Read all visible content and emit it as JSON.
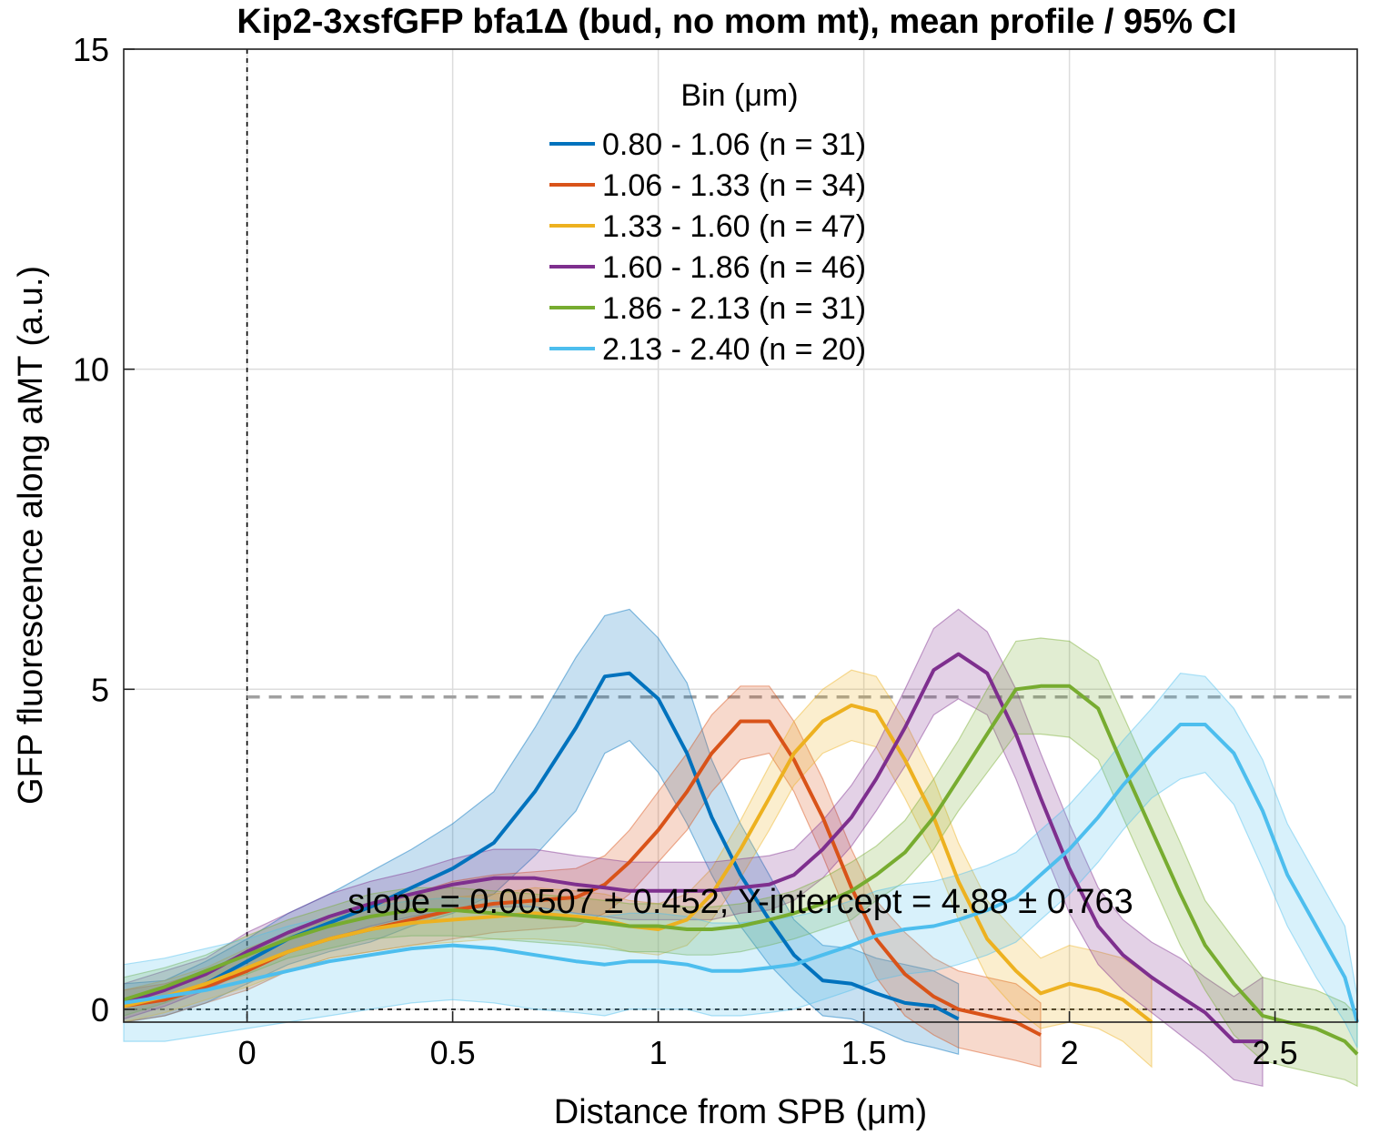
{
  "chart_data": {
    "type": "line",
    "title": "Kip2-3xsfGFP bfa1Δ (bud, no mom mt), mean profile / 95% CI",
    "xlabel": "Distance from SPB (μm)",
    "ylabel": "GFP fluorescence along aMT (a.u.)",
    "xlim": [
      -0.3,
      2.7
    ],
    "ylim": [
      -0.2,
      15
    ],
    "xticks": [
      0,
      0.5,
      1,
      1.5,
      2,
      2.5
    ],
    "xtick_labels": [
      "0",
      "0.5",
      "1",
      "1.5",
      "2",
      "2.5"
    ],
    "yticks": [
      0,
      5,
      10,
      15
    ],
    "ytick_labels": [
      "0",
      "5",
      "10",
      "15"
    ],
    "grid": true,
    "legend": {
      "title": "Bin (μm)",
      "placement": "top-center",
      "entries": [
        "0.80 - 1.06 (n =  31)",
        "1.06 - 1.33 (n =  34)",
        "1.33 - 1.60 (n =  47)",
        "1.60 - 1.86 (n =  46)",
        "1.86 - 2.13 (n =  31)",
        "2.13 - 2.40 (n =  20)"
      ]
    },
    "annotation": "slope = 0.00507 ± 0.452, Y-intercept = 4.88 ± 0.763",
    "reference_lines": {
      "fit_level": 4.88,
      "zero_y": 0,
      "zero_x": 0
    },
    "series": [
      {
        "name": "0.80 - 1.06 (n =  31)",
        "color": "#0072bd",
        "x": [
          -0.3,
          -0.2,
          -0.1,
          0,
          0.1,
          0.2,
          0.3,
          0.4,
          0.5,
          0.6,
          0.7,
          0.8,
          0.87,
          0.93,
          1.0,
          1.07,
          1.13,
          1.2,
          1.27,
          1.33,
          1.4,
          1.47,
          1.53,
          1.6,
          1.67,
          1.73
        ],
        "y": [
          0.1,
          0.15,
          0.4,
          0.75,
          1.1,
          1.35,
          1.6,
          1.9,
          2.2,
          2.6,
          3.4,
          4.4,
          5.2,
          5.25,
          4.85,
          4.0,
          3.0,
          2.1,
          1.4,
          0.85,
          0.45,
          0.4,
          0.25,
          0.1,
          0.05,
          -0.15
        ],
        "lo": [
          -0.2,
          -0.1,
          0.1,
          0.4,
          0.7,
          0.9,
          1.05,
          1.3,
          1.5,
          1.8,
          2.4,
          3.1,
          4.0,
          4.2,
          3.7,
          2.9,
          2.1,
          1.3,
          0.7,
          0.3,
          -0.1,
          -0.15,
          -0.3,
          -0.5,
          -0.6,
          -0.7
        ],
        "hi": [
          0.4,
          0.45,
          0.75,
          1.1,
          1.5,
          1.8,
          2.15,
          2.5,
          2.9,
          3.4,
          4.4,
          5.5,
          6.15,
          6.25,
          5.8,
          5.1,
          3.9,
          2.9,
          2.1,
          1.4,
          1.0,
          0.95,
          0.8,
          0.7,
          0.6,
          0.4
        ]
      },
      {
        "name": "1.06 - 1.33 (n =  34)",
        "color": "#d95319",
        "x": [
          -0.3,
          -0.2,
          -0.1,
          0,
          0.1,
          0.2,
          0.3,
          0.4,
          0.5,
          0.6,
          0.7,
          0.8,
          0.87,
          0.93,
          1.0,
          1.07,
          1.13,
          1.2,
          1.27,
          1.33,
          1.4,
          1.47,
          1.53,
          1.6,
          1.67,
          1.73,
          1.8,
          1.87,
          1.93
        ],
        "y": [
          0.05,
          0.15,
          0.35,
          0.6,
          0.9,
          1.1,
          1.25,
          1.4,
          1.55,
          1.65,
          1.7,
          1.75,
          1.95,
          2.3,
          2.8,
          3.4,
          4.0,
          4.5,
          4.5,
          3.9,
          3.0,
          1.9,
          1.1,
          0.55,
          0.2,
          0.0,
          -0.1,
          -0.2,
          -0.4
        ],
        "lo": [
          -0.2,
          -0.1,
          0.1,
          0.3,
          0.6,
          0.8,
          0.9,
          1.0,
          1.1,
          1.2,
          1.25,
          1.3,
          1.5,
          1.8,
          2.3,
          2.8,
          3.4,
          3.9,
          4.0,
          3.4,
          2.4,
          1.3,
          0.5,
          -0.1,
          -0.4,
          -0.6,
          -0.7,
          -0.8,
          -0.9
        ],
        "hi": [
          0.3,
          0.4,
          0.6,
          0.9,
          1.2,
          1.45,
          1.6,
          1.8,
          2.0,
          2.1,
          2.15,
          2.2,
          2.4,
          2.8,
          3.4,
          4.0,
          4.6,
          5.05,
          5.05,
          4.5,
          3.6,
          2.5,
          1.7,
          1.2,
          0.8,
          0.6,
          0.5,
          0.4,
          0.1
        ]
      },
      {
        "name": "1.33 - 1.60 (n =  47)",
        "color": "#edb120",
        "x": [
          -0.3,
          -0.2,
          -0.1,
          0,
          0.1,
          0.2,
          0.3,
          0.4,
          0.5,
          0.6,
          0.7,
          0.8,
          0.87,
          0.93,
          1.0,
          1.07,
          1.13,
          1.2,
          1.27,
          1.33,
          1.4,
          1.47,
          1.53,
          1.6,
          1.67,
          1.73,
          1.8,
          1.87,
          1.93,
          2.0,
          2.07,
          2.13,
          2.2
        ],
        "y": [
          0.05,
          0.2,
          0.4,
          0.65,
          0.9,
          1.1,
          1.25,
          1.35,
          1.4,
          1.45,
          1.5,
          1.45,
          1.4,
          1.3,
          1.25,
          1.4,
          1.8,
          2.5,
          3.3,
          4.0,
          4.5,
          4.75,
          4.65,
          3.9,
          3.0,
          2.0,
          1.1,
          0.6,
          0.25,
          0.4,
          0.3,
          0.15,
          -0.2
        ],
        "lo": [
          -0.2,
          -0.05,
          0.15,
          0.35,
          0.6,
          0.8,
          0.9,
          1.0,
          1.05,
          1.1,
          1.1,
          1.05,
          1.0,
          0.9,
          0.85,
          1.0,
          1.4,
          2.05,
          2.8,
          3.5,
          4.0,
          4.2,
          4.1,
          3.3,
          2.4,
          1.4,
          0.5,
          0.0,
          -0.3,
          -0.2,
          -0.3,
          -0.5,
          -0.9
        ],
        "hi": [
          0.3,
          0.45,
          0.65,
          0.95,
          1.2,
          1.4,
          1.6,
          1.7,
          1.75,
          1.8,
          1.9,
          1.85,
          1.8,
          1.7,
          1.65,
          1.8,
          2.2,
          2.95,
          3.8,
          4.5,
          5.0,
          5.3,
          5.2,
          4.5,
          3.6,
          2.6,
          1.7,
          1.2,
          0.8,
          1.0,
          0.9,
          0.8,
          0.5
        ]
      },
      {
        "name": "1.60 - 1.86 (n =  46)",
        "color": "#7e2f8e",
        "x": [
          -0.3,
          -0.2,
          -0.1,
          0,
          0.1,
          0.2,
          0.3,
          0.4,
          0.5,
          0.6,
          0.7,
          0.8,
          0.87,
          0.93,
          1.0,
          1.07,
          1.13,
          1.2,
          1.27,
          1.33,
          1.4,
          1.47,
          1.53,
          1.6,
          1.67,
          1.73,
          1.8,
          1.87,
          1.93,
          2.0,
          2.07,
          2.13,
          2.2,
          2.27,
          2.33,
          2.4,
          2.47
        ],
        "y": [
          0.1,
          0.3,
          0.55,
          0.9,
          1.2,
          1.45,
          1.65,
          1.8,
          1.95,
          2.05,
          2.05,
          1.95,
          1.9,
          1.85,
          1.85,
          1.85,
          1.85,
          1.9,
          1.95,
          2.1,
          2.5,
          3.0,
          3.6,
          4.4,
          5.3,
          5.55,
          5.25,
          4.3,
          3.3,
          2.2,
          1.3,
          0.85,
          0.5,
          0.2,
          -0.05,
          -0.5,
          -0.5
        ],
        "lo": [
          -0.15,
          0.05,
          0.3,
          0.6,
          0.9,
          1.1,
          1.3,
          1.45,
          1.55,
          1.6,
          1.6,
          1.5,
          1.45,
          1.4,
          1.4,
          1.4,
          1.4,
          1.5,
          1.55,
          1.7,
          2.05,
          2.55,
          3.1,
          3.8,
          4.6,
          4.85,
          4.6,
          3.6,
          2.6,
          1.5,
          0.7,
          0.3,
          -0.05,
          -0.4,
          -0.7,
          -1.1,
          -1.2
        ],
        "hi": [
          0.4,
          0.6,
          0.8,
          1.2,
          1.5,
          1.8,
          2.0,
          2.15,
          2.35,
          2.5,
          2.5,
          2.4,
          2.35,
          2.3,
          2.3,
          2.3,
          2.3,
          2.35,
          2.4,
          2.5,
          2.95,
          3.5,
          4.1,
          5.0,
          5.95,
          6.25,
          5.9,
          5.0,
          4.0,
          2.9,
          1.9,
          1.4,
          1.05,
          0.8,
          0.5,
          0.2,
          0.5
        ]
      },
      {
        "name": "1.86 - 2.13 (n =  31)",
        "color": "#77ac30",
        "x": [
          -0.3,
          -0.2,
          -0.1,
          0,
          0.1,
          0.2,
          0.3,
          0.4,
          0.5,
          0.6,
          0.7,
          0.8,
          0.87,
          0.93,
          1.0,
          1.07,
          1.13,
          1.2,
          1.27,
          1.33,
          1.4,
          1.47,
          1.53,
          1.6,
          1.67,
          1.73,
          1.8,
          1.87,
          1.93,
          2.0,
          2.07,
          2.13,
          2.2,
          2.27,
          2.33,
          2.4,
          2.47,
          2.53,
          2.6,
          2.67,
          2.7
        ],
        "y": [
          0.15,
          0.35,
          0.6,
          0.85,
          1.1,
          1.3,
          1.45,
          1.55,
          1.55,
          1.5,
          1.45,
          1.4,
          1.35,
          1.3,
          1.3,
          1.25,
          1.25,
          1.3,
          1.4,
          1.5,
          1.65,
          1.85,
          2.1,
          2.45,
          3.0,
          3.6,
          4.3,
          5.0,
          5.05,
          5.05,
          4.7,
          3.8,
          2.8,
          1.8,
          1.0,
          0.4,
          -0.1,
          -0.2,
          -0.3,
          -0.5,
          -0.7
        ],
        "lo": [
          -0.1,
          0.1,
          0.35,
          0.55,
          0.8,
          0.95,
          1.1,
          1.15,
          1.15,
          1.1,
          1.05,
          1.0,
          0.95,
          0.9,
          0.9,
          0.85,
          0.85,
          0.9,
          1.0,
          1.1,
          1.25,
          1.4,
          1.7,
          2.0,
          2.5,
          3.1,
          3.7,
          4.3,
          4.3,
          4.25,
          3.9,
          3.0,
          2.0,
          1.0,
          0.3,
          -0.4,
          -0.8,
          -0.9,
          -1.0,
          -1.1,
          -1.2
        ],
        "hi": [
          0.5,
          0.65,
          0.85,
          1.15,
          1.4,
          1.6,
          1.8,
          1.9,
          1.9,
          1.85,
          1.8,
          1.75,
          1.7,
          1.65,
          1.65,
          1.6,
          1.6,
          1.65,
          1.75,
          1.85,
          2.05,
          2.3,
          2.55,
          2.95,
          3.6,
          4.2,
          5.0,
          5.75,
          5.8,
          5.75,
          5.45,
          4.6,
          3.6,
          2.6,
          1.7,
          1.1,
          0.5,
          0.4,
          0.3,
          0.1,
          -0.1
        ]
      },
      {
        "name": "2.13 - 2.40 (n =  20)",
        "color": "#4dbeee",
        "x": [
          -0.3,
          -0.2,
          -0.1,
          0,
          0.1,
          0.2,
          0.3,
          0.4,
          0.5,
          0.6,
          0.7,
          0.8,
          0.87,
          0.93,
          1.0,
          1.07,
          1.13,
          1.2,
          1.27,
          1.33,
          1.4,
          1.47,
          1.53,
          1.6,
          1.67,
          1.73,
          1.8,
          1.87,
          1.93,
          2.0,
          2.07,
          2.13,
          2.2,
          2.27,
          2.33,
          2.4,
          2.47,
          2.53,
          2.6,
          2.67,
          2.7
        ],
        "y": [
          0.1,
          0.2,
          0.3,
          0.45,
          0.6,
          0.75,
          0.85,
          0.95,
          1.0,
          0.95,
          0.85,
          0.75,
          0.7,
          0.75,
          0.75,
          0.7,
          0.6,
          0.6,
          0.65,
          0.7,
          0.85,
          1.0,
          1.15,
          1.25,
          1.3,
          1.4,
          1.55,
          1.75,
          2.1,
          2.5,
          3.0,
          3.5,
          4.0,
          4.45,
          4.45,
          4.0,
          3.1,
          2.1,
          1.3,
          0.5,
          -0.2
        ],
        "lo": [
          -0.5,
          -0.5,
          -0.4,
          -0.3,
          -0.2,
          -0.1,
          0.0,
          0.1,
          0.15,
          0.1,
          0.0,
          -0.05,
          -0.1,
          0.0,
          0.0,
          0.0,
          -0.1,
          -0.1,
          -0.05,
          0.0,
          0.15,
          0.3,
          0.45,
          0.55,
          0.6,
          0.7,
          0.85,
          1.05,
          1.4,
          1.8,
          2.3,
          2.8,
          3.3,
          3.6,
          3.7,
          3.2,
          2.2,
          1.3,
          0.5,
          -0.2,
          -0.6
        ],
        "hi": [
          0.7,
          0.8,
          0.95,
          1.1,
          1.3,
          1.45,
          1.6,
          1.7,
          1.75,
          1.7,
          1.6,
          1.5,
          1.45,
          1.5,
          1.5,
          1.45,
          1.35,
          1.35,
          1.4,
          1.45,
          1.55,
          1.7,
          1.85,
          1.95,
          2.0,
          2.1,
          2.25,
          2.45,
          2.8,
          3.2,
          3.7,
          4.2,
          4.7,
          5.25,
          5.2,
          4.7,
          3.9,
          2.9,
          2.1,
          1.3,
          0.2
        ]
      }
    ]
  }
}
